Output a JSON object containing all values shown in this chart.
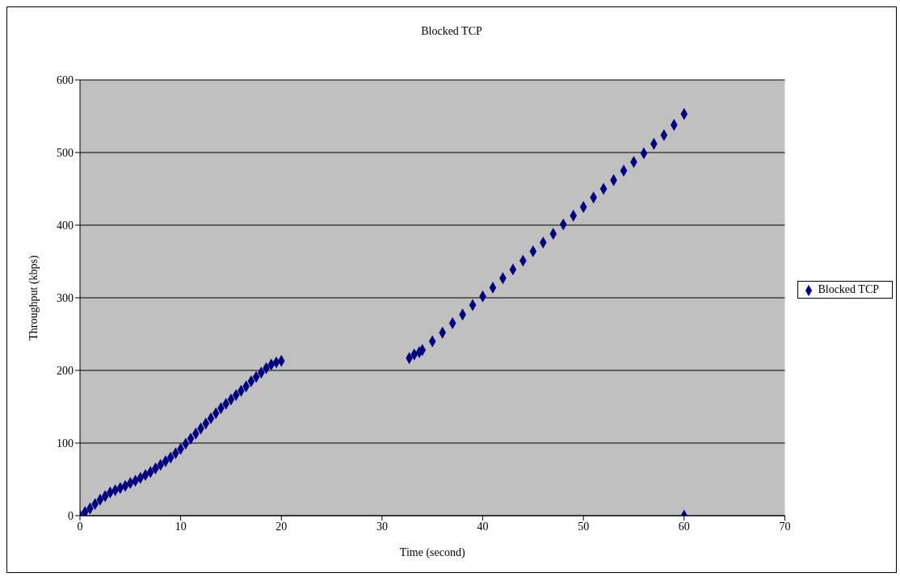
{
  "chart_data": {
    "type": "scatter",
    "title": "Blocked TCP",
    "xlabel": "Time (second)",
    "ylabel": "Throughput (kbps)",
    "series": [
      {
        "name": "Blocked TCP",
        "color": "#000080",
        "x": [
          0,
          0.5,
          1,
          1.5,
          2,
          2.5,
          3,
          3.5,
          4,
          4.5,
          5,
          5.5,
          6,
          6.5,
          7,
          7.5,
          8,
          8.5,
          9,
          9.5,
          10,
          10.5,
          11,
          11.5,
          12,
          12.5,
          13,
          13.5,
          14,
          14.5,
          15,
          15.5,
          16,
          16.5,
          17,
          17.5,
          18,
          18.5,
          19,
          19.5,
          20,
          32.7,
          33.2,
          33.7,
          34,
          35,
          36,
          37,
          38,
          39,
          40,
          41,
          42,
          43,
          44,
          45,
          46,
          47,
          48,
          49,
          50,
          51,
          52,
          53,
          54,
          55,
          56,
          57,
          58,
          59,
          60,
          60
        ],
        "values": [
          0,
          5,
          10,
          16,
          22,
          27,
          32,
          35,
          38,
          41,
          45,
          48,
          52,
          56,
          60,
          65,
          70,
          75,
          80,
          86,
          92,
          99,
          106,
          113,
          120,
          127,
          134,
          141,
          148,
          154,
          160,
          166,
          172,
          178,
          185,
          191,
          197,
          203,
          208,
          211,
          213,
          217,
          222,
          225,
          228,
          240,
          252,
          265,
          277,
          290,
          302,
          314,
          327,
          339,
          351,
          364,
          376,
          388,
          401,
          413,
          425,
          438,
          450,
          462,
          475,
          487,
          499,
          512,
          524,
          538,
          553,
          0
        ]
      }
    ],
    "xlim": [
      0,
      70
    ],
    "xticks": [
      0,
      10,
      20,
      30,
      40,
      50,
      60,
      70
    ],
    "ylim": [
      0,
      600
    ],
    "yticks": [
      0,
      100,
      200,
      300,
      400,
      500,
      600
    ],
    "grid": "y",
    "legend": "right",
    "marker": "diamond"
  }
}
